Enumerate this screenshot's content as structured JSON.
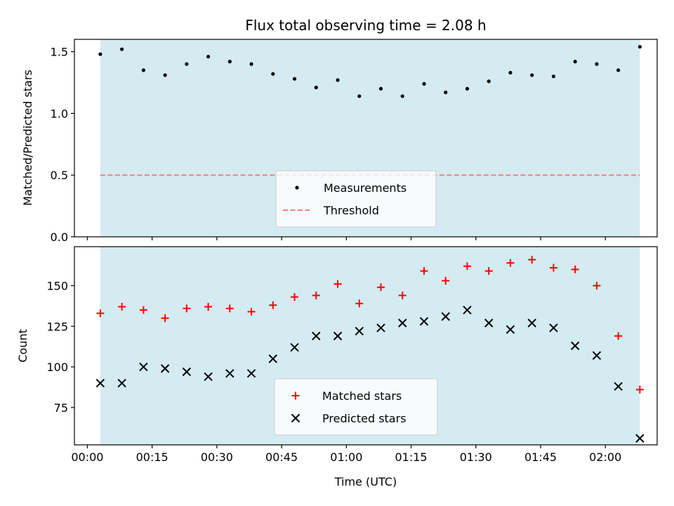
{
  "chart_data": [
    {
      "type": "scatter",
      "title": "Flux total observing time = 2.08 h",
      "ylabel": "Matched/Predicted stars",
      "xlabel": "",
      "ylim": [
        0.0,
        1.6
      ],
      "yticks": [
        0.0,
        0.5,
        1.0,
        1.5
      ],
      "ytick_labels": [
        "0.0",
        "0.5",
        "1.0",
        "1.5"
      ],
      "observing_span_minutes": [
        3,
        128
      ],
      "span_color": "#add8e6",
      "series": [
        {
          "name": "Measurements",
          "marker": "dot",
          "color": "#000000",
          "x": [
            3,
            8,
            13,
            18,
            23,
            28,
            33,
            38,
            43,
            48,
            53,
            58,
            63,
            68,
            73,
            78,
            83,
            88,
            93,
            98,
            103,
            108,
            113,
            118,
            123,
            128
          ],
          "y": [
            1.48,
            1.52,
            1.35,
            1.31,
            1.4,
            1.46,
            1.42,
            1.4,
            1.32,
            1.28,
            1.21,
            1.27,
            1.14,
            1.2,
            1.14,
            1.24,
            1.17,
            1.2,
            1.26,
            1.33,
            1.31,
            1.3,
            1.42,
            1.4,
            1.35,
            1.54
          ]
        }
      ],
      "reference_line": {
        "name": "Threshold",
        "y": 0.5,
        "color": "#f08080",
        "style": "dashed"
      },
      "legend_position": "bottom-center"
    },
    {
      "type": "scatter",
      "ylabel": "Count",
      "xlabel": "Time (UTC)",
      "ylim": [
        52,
        174
      ],
      "yticks": [
        75,
        100,
        125,
        150
      ],
      "ytick_labels": [
        "75",
        "100",
        "125",
        "150"
      ],
      "xlim": [
        -3,
        132
      ],
      "xticks": [
        0,
        15,
        30,
        45,
        60,
        75,
        90,
        105,
        120
      ],
      "xtick_labels": [
        "00:00",
        "00:15",
        "00:30",
        "00:45",
        "01:00",
        "01:15",
        "01:30",
        "01:45",
        "02:00"
      ],
      "observing_span_minutes": [
        3,
        128
      ],
      "span_color": "#add8e6",
      "series": [
        {
          "name": "Matched stars",
          "marker": "plus",
          "color": "#ff0000",
          "x": [
            3,
            8,
            13,
            18,
            23,
            28,
            33,
            38,
            43,
            48,
            53,
            58,
            63,
            68,
            73,
            78,
            83,
            88,
            93,
            98,
            103,
            108,
            113,
            118,
            123,
            128
          ],
          "y": [
            133,
            137,
            135,
            130,
            136,
            137,
            136,
            134,
            138,
            143,
            144,
            151,
            139,
            149,
            144,
            159,
            153,
            162,
            159,
            164,
            166,
            161,
            160,
            150,
            119,
            86
          ]
        },
        {
          "name": "Predicted stars",
          "marker": "x",
          "color": "#000000",
          "x": [
            3,
            8,
            13,
            18,
            23,
            28,
            33,
            38,
            43,
            48,
            53,
            58,
            63,
            68,
            73,
            78,
            83,
            88,
            93,
            98,
            103,
            108,
            113,
            118,
            123,
            128
          ],
          "y": [
            90,
            90,
            100,
            99,
            97,
            94,
            96,
            96,
            105,
            112,
            119,
            119,
            122,
            124,
            127,
            128,
            131,
            135,
            127,
            123,
            127,
            124,
            113,
            107,
            88,
            56
          ]
        }
      ],
      "legend_position": "bottom-center"
    }
  ]
}
